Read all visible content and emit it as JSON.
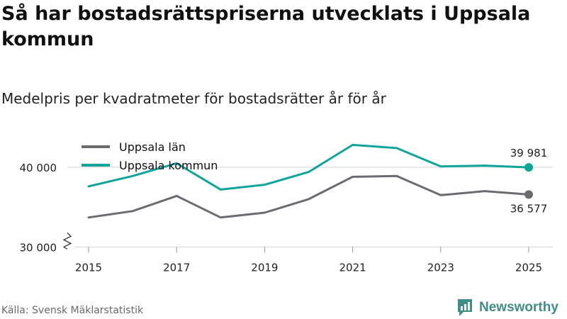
{
  "colors": {
    "lan": "#6b6b72",
    "kommun": "#0fa59a",
    "grid": "#d4d4d4",
    "brand": "#3f8f86"
  },
  "chart_data": {
    "type": "line",
    "title": "Så har bostadsrättspriserna utvecklats i Uppsala kommun",
    "subtitle": "Medelpris per kvadratmeter för bostadsrätter år för år",
    "x": [
      2015,
      2016,
      2017,
      2018,
      2019,
      2020,
      2021,
      2022,
      2023,
      2024,
      2025
    ],
    "xticks": [
      2015,
      2017,
      2019,
      2021,
      2023,
      2025
    ],
    "xtick_labels": [
      "2015",
      "2017",
      "2019",
      "2021",
      "2023",
      "2025"
    ],
    "yticks": [
      30000,
      40000
    ],
    "ytick_labels": [
      "30 000",
      "40 000"
    ],
    "ylim": [
      29500,
      45500
    ],
    "axis_break": true,
    "grid": true,
    "legend_position": "top-left",
    "series": [
      {
        "key": "lan",
        "name": "Uppsala län",
        "values": [
          33700,
          34500,
          36400,
          33700,
          34300,
          36000,
          38800,
          38900,
          36500,
          37000,
          36577
        ],
        "end_label": "36 577"
      },
      {
        "key": "kommun",
        "name": "Uppsala kommun",
        "values": [
          37600,
          38900,
          40500,
          37200,
          37800,
          39400,
          42800,
          42400,
          40100,
          40200,
          39981
        ],
        "end_label": "39 981"
      }
    ]
  },
  "footer": {
    "source": "Källa: Svensk Mäklarstatistik",
    "brand": "Newsworthy"
  }
}
